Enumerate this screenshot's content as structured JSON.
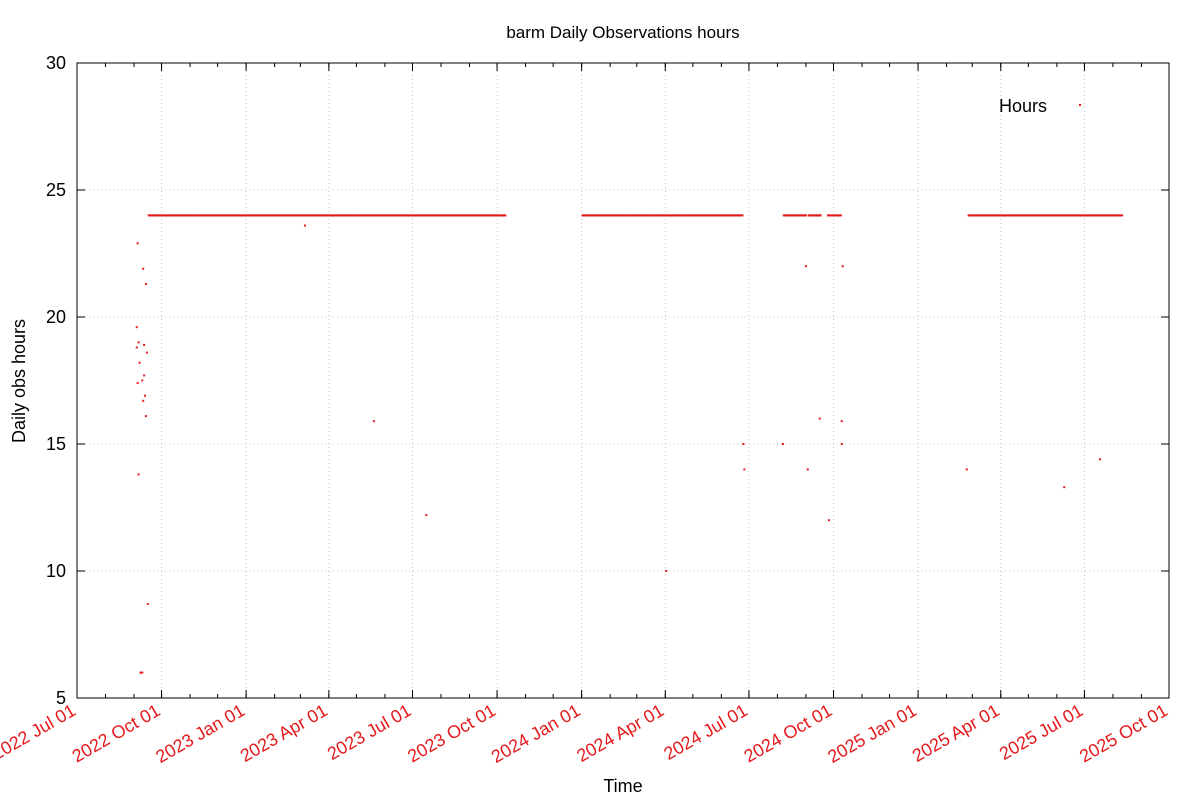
{
  "chart_data": {
    "type": "scatter",
    "title": "barm Daily Observations hours",
    "xlabel": "Time",
    "ylabel": "Daily obs hours",
    "ylim": [
      5,
      30
    ],
    "xlim": [
      "2022-07-01",
      "2025-10-01"
    ],
    "y_ticks": [
      5,
      10,
      15,
      20,
      25,
      30
    ],
    "x_ticks": [
      {
        "date": "2022-07-01",
        "label": "2022 Jul 01"
      },
      {
        "date": "2022-10-01",
        "label": "2022 Oct 01"
      },
      {
        "date": "2023-01-01",
        "label": "2023 Jan 01"
      },
      {
        "date": "2023-04-01",
        "label": "2023 Apr 01"
      },
      {
        "date": "2023-07-01",
        "label": "2023 Jul 01"
      },
      {
        "date": "2023-10-01",
        "label": "2023 Oct 01"
      },
      {
        "date": "2024-01-01",
        "label": "2024 Jan 01"
      },
      {
        "date": "2024-04-01",
        "label": "2024 Apr 01"
      },
      {
        "date": "2024-07-01",
        "label": "2024 Jul 01"
      },
      {
        "date": "2024-10-01",
        "label": "2024 Oct 01"
      },
      {
        "date": "2025-01-01",
        "label": "2025 Jan 01"
      },
      {
        "date": "2025-04-01",
        "label": "2025 Apr 01"
      },
      {
        "date": "2025-07-01",
        "label": "2025 Jul 01"
      },
      {
        "date": "2025-10-01",
        "label": "2025 Oct 01"
      }
    ],
    "grid": true,
    "legend": {
      "position": "top-right",
      "entries": [
        "Hours"
      ]
    },
    "colors": {
      "series": "#e41a1c",
      "tick_labels_x": "#e41a1c",
      "grid": "#c8c8c8",
      "axes": "#000000"
    },
    "series": [
      {
        "name": "Hours",
        "points": [
          {
            "x": "2022-09-04",
            "y": 19.6
          },
          {
            "x": "2022-09-04",
            "y": 18.8
          },
          {
            "x": "2022-09-05",
            "y": 17.4
          },
          {
            "x": "2022-09-05",
            "y": 22.9
          },
          {
            "x": "2022-09-06",
            "y": 13.8
          },
          {
            "x": "2022-09-06",
            "y": 19.0
          },
          {
            "x": "2022-09-07",
            "y": 18.2
          },
          {
            "x": "2022-09-08",
            "y": 6.0
          },
          {
            "x": "2022-09-09",
            "y": 6.0
          },
          {
            "x": "2022-09-10",
            "y": 17.5
          },
          {
            "x": "2022-09-10",
            "y": 6.0
          },
          {
            "x": "2022-09-11",
            "y": 16.7
          },
          {
            "x": "2022-09-11",
            "y": 21.9
          },
          {
            "x": "2022-09-12",
            "y": 18.9
          },
          {
            "x": "2022-09-12",
            "y": 17.7
          },
          {
            "x": "2022-09-13",
            "y": 16.9
          },
          {
            "x": "2022-09-14",
            "y": 16.1
          },
          {
            "x": "2022-09-14",
            "y": 21.3
          },
          {
            "x": "2022-09-15",
            "y": 18.6
          },
          {
            "x": "2022-09-16",
            "y": 8.7
          },
          {
            "x": "2023-03-06",
            "y": 23.6
          },
          {
            "x": "2023-05-20",
            "y": 15.9
          },
          {
            "x": "2023-07-16",
            "y": 12.2
          },
          {
            "x": "2024-04-02",
            "y": 10.0
          },
          {
            "x": "2024-06-25",
            "y": 15.0
          },
          {
            "x": "2024-06-26",
            "y": 14.0
          },
          {
            "x": "2024-08-07",
            "y": 15.0
          },
          {
            "x": "2024-09-01",
            "y": 22.0
          },
          {
            "x": "2024-09-03",
            "y": 14.0
          },
          {
            "x": "2024-09-16",
            "y": 16.0
          },
          {
            "x": "2024-09-26",
            "y": 12.0
          },
          {
            "x": "2024-10-10",
            "y": 15.9
          },
          {
            "x": "2024-10-10",
            "y": 15.0
          },
          {
            "x": "2024-10-11",
            "y": 22.0
          },
          {
            "x": "2025-02-23",
            "y": 14.0
          },
          {
            "x": "2025-06-09",
            "y": 13.3
          },
          {
            "x": "2025-07-18",
            "y": 14.4
          }
        ],
        "constant_runs": [
          {
            "start": "2022-09-17",
            "end": "2023-10-10",
            "y": 24.0
          },
          {
            "start": "2024-01-02",
            "end": "2024-06-24",
            "y": 24.0
          },
          {
            "start": "2024-08-08",
            "end": "2024-09-01",
            "y": 24.0
          },
          {
            "start": "2024-09-04",
            "end": "2024-09-17",
            "y": 24.0
          },
          {
            "start": "2024-09-25",
            "end": "2024-10-09",
            "y": 24.0
          },
          {
            "start": "2025-02-25",
            "end": "2025-08-11",
            "y": 24.0
          }
        ]
      }
    ]
  }
}
